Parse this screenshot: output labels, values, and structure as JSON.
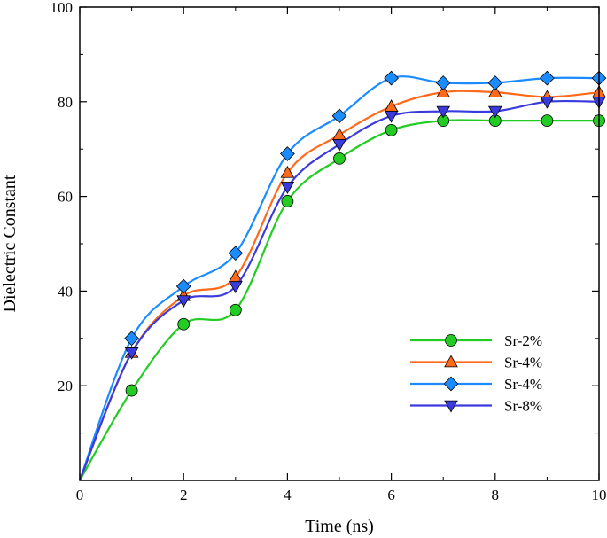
{
  "chart_data": {
    "type": "line",
    "title": "",
    "xlabel": "Time (ns)",
    "ylabel": "Dielectric Constant",
    "xlim": [
      0,
      10
    ],
    "ylim": [
      0,
      100
    ],
    "x_major_ticks": [
      0,
      2,
      4,
      6,
      8,
      10
    ],
    "x_minor_ticks": [
      1,
      3,
      5,
      7,
      9
    ],
    "y_major_ticks": [
      20,
      40,
      60,
      80,
      100
    ],
    "y_minor_ticks": [
      10,
      30,
      50,
      70,
      90
    ],
    "x_tick_labels": [
      "0",
      "2",
      "4",
      "6",
      "8",
      "10"
    ],
    "y_tick_labels": [
      "20",
      "40",
      "60",
      "80",
      "100"
    ],
    "grid": false,
    "legend_position": "bottom-right",
    "series": [
      {
        "name": "Sr-2%",
        "color": "#22cc22",
        "marker": "circle",
        "x": [
          0,
          1,
          2,
          3,
          4,
          5,
          6,
          7,
          8,
          9,
          10
        ],
        "values": [
          0,
          19,
          33,
          36,
          59,
          68,
          74,
          76,
          76,
          76,
          76
        ]
      },
      {
        "name": "Sr-4%",
        "color": "#ff6a1a",
        "marker": "triangle-up",
        "x": [
          0,
          1,
          2,
          3,
          4,
          5,
          6,
          7,
          8,
          9,
          10
        ],
        "values": [
          0,
          27,
          39,
          43,
          65,
          73,
          79,
          82,
          82,
          81,
          82
        ]
      },
      {
        "name": "Sr-4%",
        "color": "#1a8cff",
        "marker": "diamond",
        "x": [
          0,
          1,
          2,
          3,
          4,
          5,
          6,
          7,
          8,
          9,
          10
        ],
        "values": [
          0,
          30,
          41,
          48,
          69,
          77,
          85,
          84,
          84,
          85,
          85
        ]
      },
      {
        "name": "Sr-8%",
        "color": "#3b3bdd",
        "marker": "triangle-down",
        "x": [
          0,
          1,
          2,
          3,
          4,
          5,
          6,
          7,
          8,
          9,
          10
        ],
        "values": [
          0,
          27,
          38,
          41,
          62,
          71,
          77,
          78,
          78,
          80,
          80
        ]
      }
    ]
  }
}
